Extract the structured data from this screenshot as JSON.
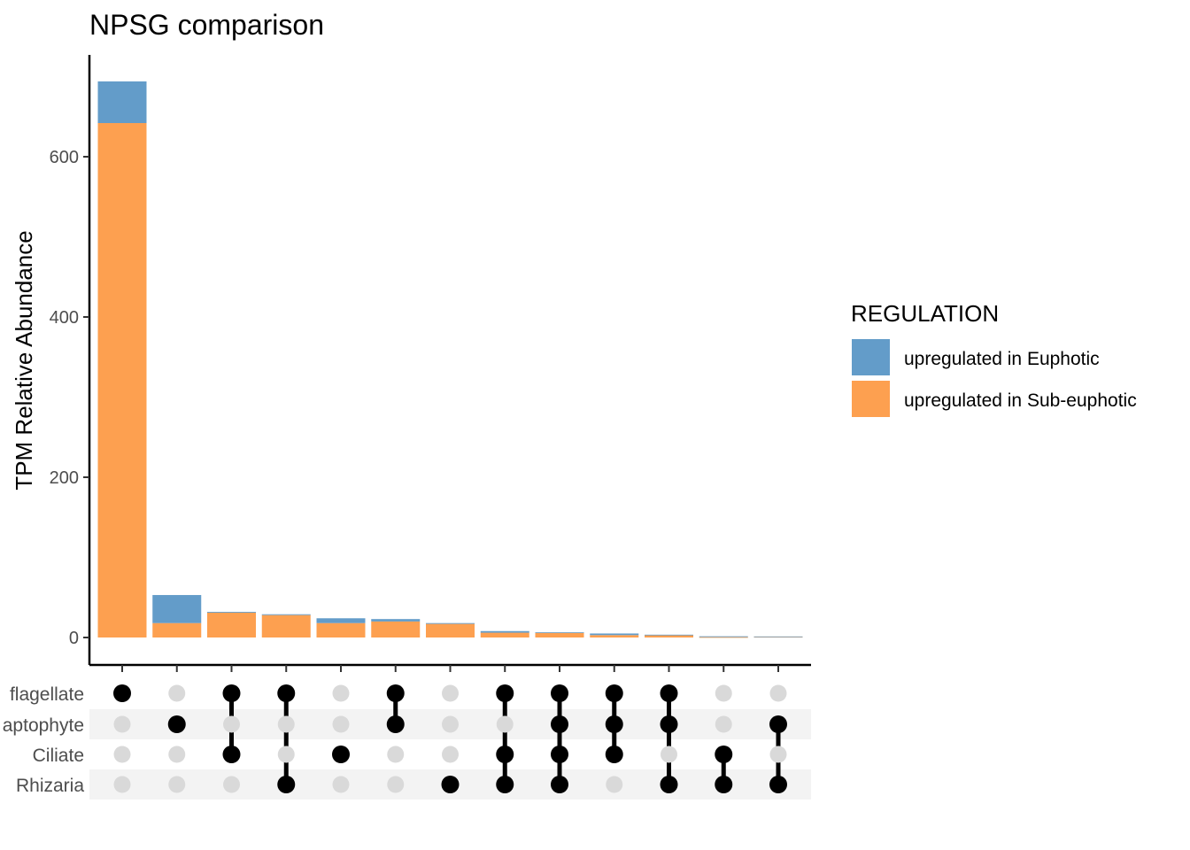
{
  "chart_data": {
    "type": "bar",
    "subtype": "upset-stacked",
    "title": "NPSG comparison",
    "ylabel": "TPM Relative Abundance",
    "xlabel": "",
    "ylim": [
      0,
      700
    ],
    "yticks": [
      0,
      200,
      400,
      600
    ],
    "sets": [
      "flagellate",
      "aptophyte",
      "Ciliate",
      "Rhizaria"
    ],
    "intersections": [
      [
        0
      ],
      [
        1
      ],
      [
        0,
        2
      ],
      [
        0,
        3
      ],
      [
        2
      ],
      [
        0,
        1
      ],
      [
        3
      ],
      [
        0,
        2,
        3
      ],
      [
        0,
        1,
        2,
        3
      ],
      [
        0,
        1,
        2
      ],
      [
        0,
        1,
        3
      ],
      [
        2,
        3
      ],
      [
        1,
        3
      ]
    ],
    "series": [
      {
        "name": "upregulated in Sub-euphotic",
        "color": "#FDA050",
        "values": [
          642,
          18,
          31,
          28,
          18,
          20,
          17,
          6,
          6,
          3,
          3,
          0.5,
          1
        ]
      },
      {
        "name": "upregulated in Euphotic",
        "color": "#639CC9",
        "values": [
          52,
          35,
          1,
          1,
          6,
          3,
          1,
          2,
          0.5,
          2,
          0.5,
          1,
          0.3
        ]
      }
    ],
    "legend": {
      "title": "REGULATION",
      "position": "right"
    },
    "grid": false,
    "dot_active_color": "#000000",
    "dot_inactive_color": "#d9d9d9",
    "stripe_color": "#f3f3f3"
  }
}
